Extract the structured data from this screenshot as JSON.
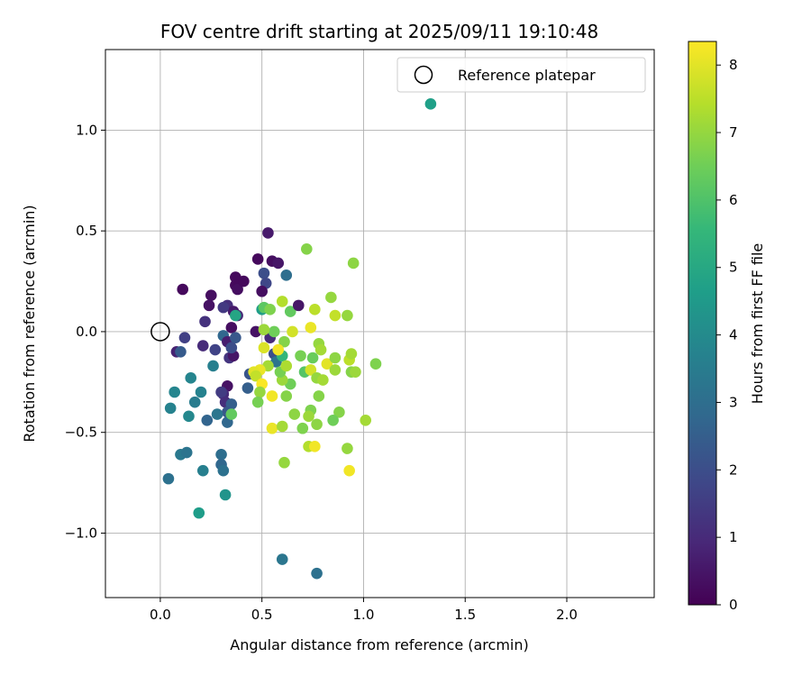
{
  "chart_data": {
    "type": "scatter",
    "title": "FOV centre drift starting at 2025/09/11 19:10:48",
    "xlabel": "Angular distance from reference (arcmin)",
    "ylabel": "Rotation from reference (arcmin)",
    "xlim": [
      -0.27,
      2.43
    ],
    "ylim": [
      -1.32,
      1.4
    ],
    "xticks": [
      0.0,
      0.5,
      1.0,
      1.5,
      2.0
    ],
    "xtick_labels": [
      "0.0",
      "0.5",
      "1.0",
      "1.5",
      "2.0"
    ],
    "yticks": [
      -1.0,
      -0.5,
      0.0,
      0.5,
      1.0
    ],
    "ytick_labels": [
      "−1.0",
      "−0.5",
      "0.0",
      "0.5",
      "1.0"
    ],
    "grid": true,
    "legend": {
      "placement": "top-right",
      "entries": [
        "Reference platepar"
      ]
    },
    "reference_point": {
      "x": 0.0,
      "y": 0.0
    },
    "colorbar": {
      "label": "Hours from first FF file",
      "range": [
        0,
        8.35
      ],
      "ticks": [
        0,
        1,
        2,
        3,
        4,
        5,
        6,
        7,
        8
      ],
      "tick_labels": [
        "0",
        "1",
        "2",
        "3",
        "4",
        "5",
        "6",
        "7",
        "8"
      ],
      "colormap": [
        "#440154",
        "#482878",
        "#3e4989",
        "#31688e",
        "#26828e",
        "#1f9e89",
        "#35b779",
        "#6ece58",
        "#b5de2b",
        "#fde725"
      ]
    },
    "points": [
      {
        "x": 1.33,
        "y": 1.13,
        "h": 4.7
      },
      {
        "x": 0.11,
        "y": 0.21,
        "h": 0.2
      },
      {
        "x": 0.08,
        "y": -0.1,
        "h": 0.8
      },
      {
        "x": 0.12,
        "y": -0.03,
        "h": 1.6
      },
      {
        "x": 0.1,
        "y": -0.1,
        "h": 2.4
      },
      {
        "x": 0.22,
        "y": 0.05,
        "h": 1.2
      },
      {
        "x": 0.25,
        "y": 0.18,
        "h": 0.3
      },
      {
        "x": 0.24,
        "y": 0.13,
        "h": 0.4
      },
      {
        "x": 0.21,
        "y": -0.07,
        "h": 1.0
      },
      {
        "x": 0.27,
        "y": -0.09,
        "h": 1.7
      },
      {
        "x": 0.31,
        "y": -0.02,
        "h": 2.8
      },
      {
        "x": 0.33,
        "y": -0.05,
        "h": 0.7
      },
      {
        "x": 0.33,
        "y": 0.13,
        "h": 1.1
      },
      {
        "x": 0.35,
        "y": 0.02,
        "h": 0.3
      },
      {
        "x": 0.37,
        "y": 0.27,
        "h": 0.2
      },
      {
        "x": 0.37,
        "y": 0.23,
        "h": 0.2
      },
      {
        "x": 0.38,
        "y": 0.21,
        "h": 0.3
      },
      {
        "x": 0.38,
        "y": 0.08,
        "h": 0.9
      },
      {
        "x": 0.37,
        "y": -0.03,
        "h": 2.3
      },
      {
        "x": 0.34,
        "y": -0.13,
        "h": 1.3
      },
      {
        "x": 0.36,
        "y": -0.12,
        "h": 0.5
      },
      {
        "x": 0.35,
        "y": -0.08,
        "h": 2.0
      },
      {
        "x": 0.36,
        "y": 0.1,
        "h": 0.6
      },
      {
        "x": 0.37,
        "y": 0.08,
        "h": 4.9
      },
      {
        "x": 0.31,
        "y": 0.12,
        "h": 1.4
      },
      {
        "x": 0.44,
        "y": -0.21,
        "h": 2.2
      },
      {
        "x": 0.43,
        "y": -0.28,
        "h": 2.5
      },
      {
        "x": 0.33,
        "y": -0.27,
        "h": 0.4
      },
      {
        "x": 0.31,
        "y": -0.31,
        "h": 1.0
      },
      {
        "x": 0.3,
        "y": -0.3,
        "h": 1.5
      },
      {
        "x": 0.32,
        "y": -0.35,
        "h": 1.1
      },
      {
        "x": 0.35,
        "y": -0.36,
        "h": 2.5
      },
      {
        "x": 0.33,
        "y": -0.4,
        "h": 2.3
      },
      {
        "x": 0.33,
        "y": -0.45,
        "h": 2.8
      },
      {
        "x": 0.35,
        "y": -0.41,
        "h": 6.3
      },
      {
        "x": 0.28,
        "y": -0.41,
        "h": 3.3
      },
      {
        "x": 0.26,
        "y": -0.17,
        "h": 3.6
      },
      {
        "x": 0.23,
        "y": -0.44,
        "h": 2.7
      },
      {
        "x": 0.2,
        "y": -0.3,
        "h": 3.7
      },
      {
        "x": 0.17,
        "y": -0.35,
        "h": 3.5
      },
      {
        "x": 0.15,
        "y": -0.23,
        "h": 3.8
      },
      {
        "x": 0.14,
        "y": -0.42,
        "h": 3.9
      },
      {
        "x": 0.07,
        "y": -0.3,
        "h": 3.8
      },
      {
        "x": 0.05,
        "y": -0.38,
        "h": 3.7
      },
      {
        "x": 0.1,
        "y": -0.61,
        "h": 3.4
      },
      {
        "x": 0.13,
        "y": -0.6,
        "h": 3.2
      },
      {
        "x": 0.04,
        "y": -0.73,
        "h": 3.1
      },
      {
        "x": 0.21,
        "y": -0.69,
        "h": 3.6
      },
      {
        "x": 0.3,
        "y": -0.61,
        "h": 3.0
      },
      {
        "x": 0.3,
        "y": -0.66,
        "h": 2.8
      },
      {
        "x": 0.31,
        "y": -0.69,
        "h": 3.1
      },
      {
        "x": 0.32,
        "y": -0.81,
        "h": 4.3
      },
      {
        "x": 0.19,
        "y": -0.9,
        "h": 4.6
      },
      {
        "x": 0.6,
        "y": -1.13,
        "h": 3.3
      },
      {
        "x": 0.77,
        "y": -1.2,
        "h": 3.1
      },
      {
        "x": 0.41,
        "y": 0.25,
        "h": 0.2
      },
      {
        "x": 0.48,
        "y": 0.36,
        "h": 0.2
      },
      {
        "x": 0.53,
        "y": 0.49,
        "h": 0.6
      },
      {
        "x": 0.55,
        "y": 0.35,
        "h": 0.3
      },
      {
        "x": 0.58,
        "y": 0.34,
        "h": 0.5
      },
      {
        "x": 0.51,
        "y": 0.29,
        "h": 2.0
      },
      {
        "x": 0.52,
        "y": 0.24,
        "h": 1.8
      },
      {
        "x": 0.62,
        "y": 0.28,
        "h": 3.0
      },
      {
        "x": 0.5,
        "y": 0.2,
        "h": 0.3
      },
      {
        "x": 0.47,
        "y": 0.0,
        "h": 0.4
      },
      {
        "x": 0.5,
        "y": 0.11,
        "h": 4.6
      },
      {
        "x": 0.51,
        "y": 0.12,
        "h": 6.2
      },
      {
        "x": 0.54,
        "y": 0.11,
        "h": 6.7
      },
      {
        "x": 0.54,
        "y": -0.03,
        "h": 1.0
      },
      {
        "x": 0.56,
        "y": -0.11,
        "h": 2.0
      },
      {
        "x": 0.57,
        "y": -0.15,
        "h": 3.2
      },
      {
        "x": 0.6,
        "y": -0.12,
        "h": 5.5
      },
      {
        "x": 0.6,
        "y": 0.15,
        "h": 7.4
      },
      {
        "x": 0.64,
        "y": 0.1,
        "h": 6.3
      },
      {
        "x": 0.68,
        "y": 0.13,
        "h": 0.5
      },
      {
        "x": 0.65,
        "y": 0.0,
        "h": 7.8
      },
      {
        "x": 0.61,
        "y": -0.05,
        "h": 6.8
      },
      {
        "x": 0.58,
        "y": -0.09,
        "h": 8.2
      },
      {
        "x": 0.56,
        "y": 0.0,
        "h": 6.5
      },
      {
        "x": 0.51,
        "y": 0.01,
        "h": 7.1
      },
      {
        "x": 0.51,
        "y": -0.08,
        "h": 7.9
      },
      {
        "x": 0.53,
        "y": -0.17,
        "h": 7.2
      },
      {
        "x": 0.49,
        "y": -0.19,
        "h": 8.1
      },
      {
        "x": 0.46,
        "y": -0.2,
        "h": 8.0
      },
      {
        "x": 0.47,
        "y": -0.22,
        "h": 7.6
      },
      {
        "x": 0.5,
        "y": -0.26,
        "h": 8.3
      },
      {
        "x": 0.49,
        "y": -0.3,
        "h": 7.0
      },
      {
        "x": 0.48,
        "y": -0.35,
        "h": 6.6
      },
      {
        "x": 0.55,
        "y": -0.32,
        "h": 8.2
      },
      {
        "x": 0.55,
        "y": -0.48,
        "h": 8.1
      },
      {
        "x": 0.6,
        "y": -0.47,
        "h": 7.2
      },
      {
        "x": 0.61,
        "y": -0.65,
        "h": 7.0
      },
      {
        "x": 0.62,
        "y": -0.32,
        "h": 6.8
      },
      {
        "x": 0.64,
        "y": -0.26,
        "h": 6.5
      },
      {
        "x": 0.6,
        "y": -0.24,
        "h": 7.1
      },
      {
        "x": 0.59,
        "y": -0.2,
        "h": 6.6
      },
      {
        "x": 0.62,
        "y": -0.17,
        "h": 7.3
      },
      {
        "x": 0.66,
        "y": -0.41,
        "h": 6.9
      },
      {
        "x": 0.7,
        "y": -0.48,
        "h": 6.7
      },
      {
        "x": 0.71,
        "y": -0.2,
        "h": 6.1
      },
      {
        "x": 0.69,
        "y": -0.12,
        "h": 6.6
      },
      {
        "x": 0.72,
        "y": 0.41,
        "h": 6.8
      },
      {
        "x": 0.74,
        "y": 0.02,
        "h": 8.1
      },
      {
        "x": 0.76,
        "y": 0.11,
        "h": 7.5
      },
      {
        "x": 0.78,
        "y": -0.06,
        "h": 7.0
      },
      {
        "x": 0.79,
        "y": -0.09,
        "h": 7.2
      },
      {
        "x": 0.75,
        "y": -0.13,
        "h": 6.4
      },
      {
        "x": 0.74,
        "y": -0.19,
        "h": 7.8
      },
      {
        "x": 0.77,
        "y": -0.23,
        "h": 7.0
      },
      {
        "x": 0.8,
        "y": -0.24,
        "h": 7.2
      },
      {
        "x": 0.78,
        "y": -0.32,
        "h": 6.8
      },
      {
        "x": 0.74,
        "y": -0.39,
        "h": 6.7
      },
      {
        "x": 0.73,
        "y": -0.42,
        "h": 7.1
      },
      {
        "x": 0.77,
        "y": -0.46,
        "h": 6.9
      },
      {
        "x": 0.73,
        "y": -0.57,
        "h": 7.4
      },
      {
        "x": 0.76,
        "y": -0.57,
        "h": 8.2
      },
      {
        "x": 0.82,
        "y": -0.16,
        "h": 8.0
      },
      {
        "x": 0.84,
        "y": 0.17,
        "h": 7.0
      },
      {
        "x": 0.86,
        "y": 0.08,
        "h": 7.6
      },
      {
        "x": 0.86,
        "y": -0.13,
        "h": 6.9
      },
      {
        "x": 0.86,
        "y": -0.19,
        "h": 7.1
      },
      {
        "x": 0.88,
        "y": -0.4,
        "h": 6.8
      },
      {
        "x": 0.85,
        "y": -0.44,
        "h": 6.5
      },
      {
        "x": 0.92,
        "y": 0.08,
        "h": 7.0
      },
      {
        "x": 0.93,
        "y": -0.14,
        "h": 7.5
      },
      {
        "x": 0.94,
        "y": -0.11,
        "h": 7.2
      },
      {
        "x": 0.94,
        "y": -0.2,
        "h": 6.8
      },
      {
        "x": 0.96,
        "y": -0.2,
        "h": 7.1
      },
      {
        "x": 0.95,
        "y": 0.34,
        "h": 6.9
      },
      {
        "x": 0.92,
        "y": -0.58,
        "h": 7.0
      },
      {
        "x": 0.93,
        "y": -0.69,
        "h": 8.2
      },
      {
        "x": 1.01,
        "y": -0.44,
        "h": 7.2
      },
      {
        "x": 1.06,
        "y": -0.16,
        "h": 6.7
      }
    ]
  }
}
